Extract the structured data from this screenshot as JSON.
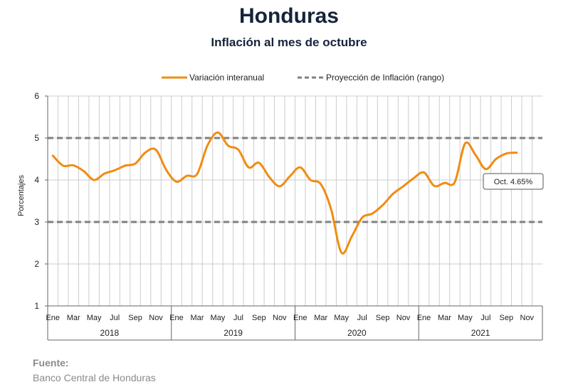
{
  "header": {
    "title": "Honduras",
    "subtitle": "Inflación al mes de octubre"
  },
  "source": {
    "label": "Fuente:",
    "text": "Banco Central de Honduras"
  },
  "colors": {
    "series": "#f08c12",
    "band": "#808080",
    "grid": "#cccccc",
    "axis": "#666666",
    "text": "#222222"
  },
  "chart_data": {
    "type": "line",
    "title": "",
    "xlabel": "",
    "ylabel": "Porcentajes",
    "ylim": [
      1,
      6
    ],
    "yticks": [
      "1",
      "2",
      "3",
      "4",
      "5",
      "6"
    ],
    "grid": true,
    "legend_position": "top-center",
    "x_month_labels": [
      "Ene",
      "Mar",
      "May",
      "Jul",
      "Sep",
      "Nov"
    ],
    "years": [
      "2018",
      "2019",
      "2020",
      "2021"
    ],
    "x": [
      "2018-01",
      "2018-02",
      "2018-03",
      "2018-04",
      "2018-05",
      "2018-06",
      "2018-07",
      "2018-08",
      "2018-09",
      "2018-10",
      "2018-11",
      "2018-12",
      "2019-01",
      "2019-02",
      "2019-03",
      "2019-04",
      "2019-05",
      "2019-06",
      "2019-07",
      "2019-08",
      "2019-09",
      "2019-10",
      "2019-11",
      "2019-12",
      "2020-01",
      "2020-02",
      "2020-03",
      "2020-04",
      "2020-05",
      "2020-06",
      "2020-07",
      "2020-08",
      "2020-09",
      "2020-10",
      "2020-11",
      "2020-12",
      "2021-01",
      "2021-02",
      "2021-03",
      "2021-04",
      "2021-05",
      "2021-06",
      "2021-07",
      "2021-08",
      "2021-09",
      "2021-10"
    ],
    "series": [
      {
        "name": "Variación interanual",
        "values": [
          4.58,
          4.34,
          4.35,
          4.21,
          4.0,
          4.15,
          4.23,
          4.34,
          4.39,
          4.66,
          4.72,
          4.24,
          3.96,
          4.1,
          4.14,
          4.82,
          5.13,
          4.82,
          4.72,
          4.3,
          4.41,
          4.07,
          3.85,
          4.09,
          4.3,
          4.0,
          3.9,
          3.3,
          2.27,
          2.65,
          3.1,
          3.2,
          3.4,
          3.67,
          3.85,
          4.04,
          4.18,
          3.86,
          3.93,
          3.95,
          4.87,
          4.6,
          4.26,
          4.5,
          4.63,
          4.65
        ]
      },
      {
        "name": "Proyección de Inflación (rango)",
        "band": [
          3,
          5
        ]
      }
    ],
    "annotation": "Oct. 4.65%"
  }
}
